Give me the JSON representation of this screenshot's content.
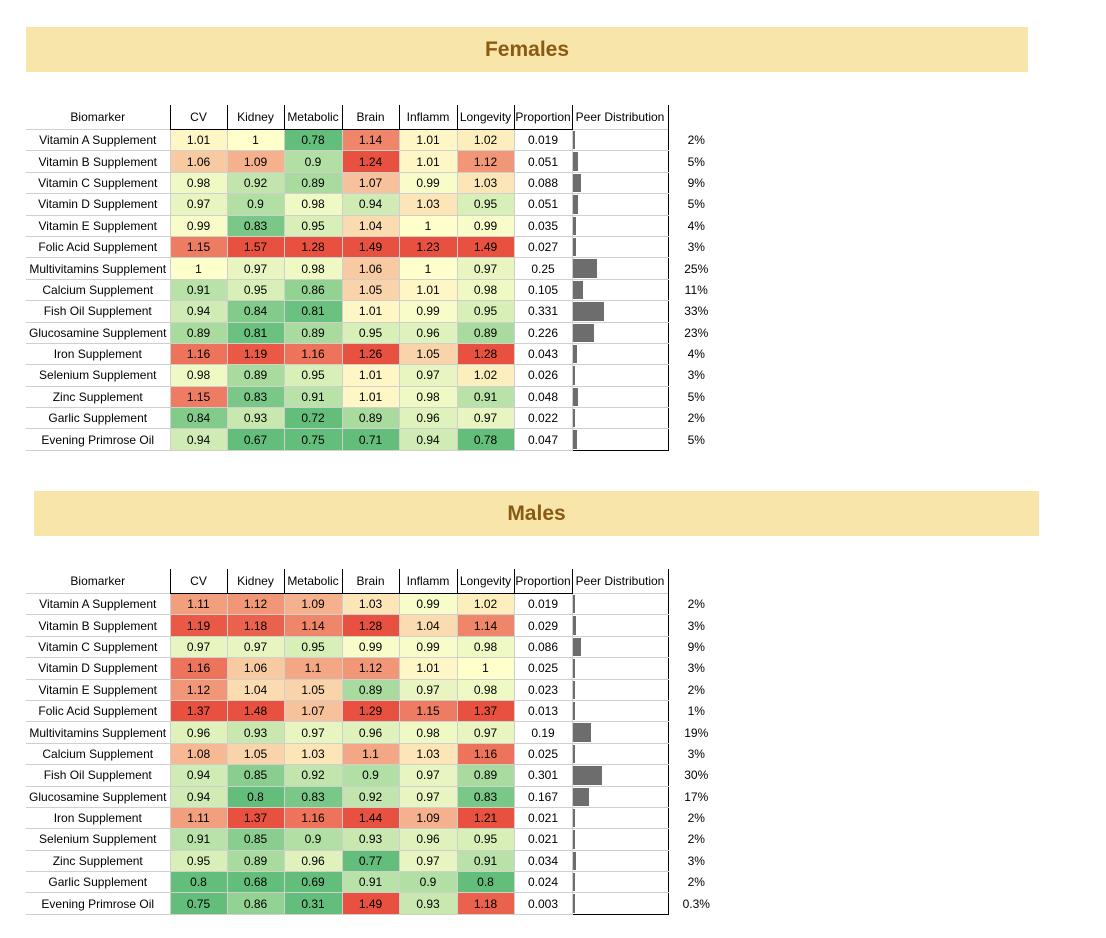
{
  "columns": [
    "Biomarker",
    "CV",
    "Kidney",
    "Metabolic",
    "Brain",
    "Inflamm",
    "Longevity",
    "Proportion",
    "Peer Distribution"
  ],
  "colors": {
    "banner": "#f7e5aa",
    "banner_text": "#8a5a14",
    "bar": "#6d6d6d",
    "low": "#63be7b",
    "mid": "#ffffcc",
    "high": "#e8503f"
  },
  "sections": [
    {
      "title": "Females",
      "chart_data": {
        "type": "table",
        "rows": [
          {
            "name": "Vitamin A Supplement",
            "values": [
              "1.01",
              "1",
              "0.78",
              "1.14",
              "1.01",
              "1.02"
            ],
            "proportion": "0.019",
            "pct": "2%",
            "frac": 0.019
          },
          {
            "name": "Vitamin B Supplement",
            "values": [
              "1.06",
              "1.09",
              "0.9",
              "1.24",
              "1.01",
              "1.12"
            ],
            "proportion": "0.051",
            "pct": "5%",
            "frac": 0.051
          },
          {
            "name": "Vitamin C Supplement",
            "values": [
              "0.98",
              "0.92",
              "0.89",
              "1.07",
              "0.99",
              "1.03"
            ],
            "proportion": "0.088",
            "pct": "9%",
            "frac": 0.088
          },
          {
            "name": "Vitamin D Supplement",
            "values": [
              "0.97",
              "0.9",
              "0.98",
              "0.94",
              "1.03",
              "0.95"
            ],
            "proportion": "0.051",
            "pct": "5%",
            "frac": 0.051
          },
          {
            "name": "Vitamin E Supplement",
            "values": [
              "0.99",
              "0.83",
              "0.95",
              "1.04",
              "1",
              "0.99"
            ],
            "proportion": "0.035",
            "pct": "4%",
            "frac": 0.035
          },
          {
            "name": "Folic Acid Supplement",
            "values": [
              "1.15",
              "1.57",
              "1.28",
              "1.49",
              "1.23",
              "1.49"
            ],
            "proportion": "0.027",
            "pct": "3%",
            "frac": 0.027
          },
          {
            "name": "Multivitamins Supplement",
            "values": [
              "1",
              "0.97",
              "0.98",
              "1.06",
              "1",
              "0.97"
            ],
            "proportion": "0.25",
            "pct": "25%",
            "frac": 0.25
          },
          {
            "name": "Calcium Supplement",
            "values": [
              "0.91",
              "0.95",
              "0.86",
              "1.05",
              "1.01",
              "0.98"
            ],
            "proportion": "0.105",
            "pct": "11%",
            "frac": 0.105
          },
          {
            "name": "Fish Oil Supplement",
            "values": [
              "0.94",
              "0.84",
              "0.81",
              "1.01",
              "0.99",
              "0.95"
            ],
            "proportion": "0.331",
            "pct": "33%",
            "frac": 0.331
          },
          {
            "name": "Glucosamine Supplement",
            "values": [
              "0.89",
              "0.81",
              "0.89",
              "0.95",
              "0.96",
              "0.89"
            ],
            "proportion": "0.226",
            "pct": "23%",
            "frac": 0.226
          },
          {
            "name": "Iron Supplement",
            "values": [
              "1.16",
              "1.19",
              "1.16",
              "1.26",
              "1.05",
              "1.28"
            ],
            "proportion": "0.043",
            "pct": "4%",
            "frac": 0.043
          },
          {
            "name": "Selenium Supplement",
            "values": [
              "0.98",
              "0.89",
              "0.95",
              "1.01",
              "0.97",
              "1.02"
            ],
            "proportion": "0.026",
            "pct": "3%",
            "frac": 0.026
          },
          {
            "name": "Zinc Supplement",
            "values": [
              "1.15",
              "0.83",
              "0.91",
              "1.01",
              "0.98",
              "0.91"
            ],
            "proportion": "0.048",
            "pct": "5%",
            "frac": 0.048
          },
          {
            "name": "Garlic Supplement",
            "values": [
              "0.84",
              "0.93",
              "0.72",
              "0.89",
              "0.96",
              "0.97"
            ],
            "proportion": "0.022",
            "pct": "2%",
            "frac": 0.022
          },
          {
            "name": "Evening Primrose Oil",
            "values": [
              "0.94",
              "0.67",
              "0.75",
              "0.71",
              "0.94",
              "0.78"
            ],
            "proportion": "0.047",
            "pct": "5%",
            "frac": 0.047
          }
        ]
      }
    },
    {
      "title": "Males",
      "chart_data": {
        "type": "table",
        "rows": [
          {
            "name": "Vitamin A Supplement",
            "values": [
              "1.11",
              "1.12",
              "1.09",
              "1.03",
              "0.99",
              "1.02"
            ],
            "proportion": "0.019",
            "pct": "2%",
            "frac": 0.019
          },
          {
            "name": "Vitamin B Supplement",
            "values": [
              "1.19",
              "1.18",
              "1.14",
              "1.28",
              "1.04",
              "1.14"
            ],
            "proportion": "0.029",
            "pct": "3%",
            "frac": 0.029
          },
          {
            "name": "Vitamin C Supplement",
            "values": [
              "0.97",
              "0.97",
              "0.95",
              "0.99",
              "0.99",
              "0.98"
            ],
            "proportion": "0.086",
            "pct": "9%",
            "frac": 0.086
          },
          {
            "name": "Vitamin D Supplement",
            "values": [
              "1.16",
              "1.06",
              "1.1",
              "1.12",
              "1.01",
              "1"
            ],
            "proportion": "0.025",
            "pct": "3%",
            "frac": 0.025
          },
          {
            "name": "Vitamin E Supplement",
            "values": [
              "1.12",
              "1.04",
              "1.05",
              "0.89",
              "0.97",
              "0.98"
            ],
            "proportion": "0.023",
            "pct": "2%",
            "frac": 0.023
          },
          {
            "name": "Folic Acid Supplement",
            "values": [
              "1.37",
              "1.48",
              "1.07",
              "1.29",
              "1.15",
              "1.37"
            ],
            "proportion": "0.013",
            "pct": "1%",
            "frac": 0.013
          },
          {
            "name": "Multivitamins Supplement",
            "values": [
              "0.96",
              "0.93",
              "0.97",
              "0.96",
              "0.98",
              "0.97"
            ],
            "proportion": "0.19",
            "pct": "19%",
            "frac": 0.19
          },
          {
            "name": "Calcium Supplement",
            "values": [
              "1.08",
              "1.05",
              "1.03",
              "1.1",
              "1.03",
              "1.16"
            ],
            "proportion": "0.025",
            "pct": "3%",
            "frac": 0.025
          },
          {
            "name": "Fish Oil Supplement",
            "values": [
              "0.94",
              "0.85",
              "0.92",
              "0.9",
              "0.97",
              "0.89"
            ],
            "proportion": "0.301",
            "pct": "30%",
            "frac": 0.301
          },
          {
            "name": "Glucosamine Supplement",
            "values": [
              "0.94",
              "0.8",
              "0.83",
              "0.92",
              "0.97",
              "0.83"
            ],
            "proportion": "0.167",
            "pct": "17%",
            "frac": 0.167
          },
          {
            "name": "Iron Supplement",
            "values": [
              "1.11",
              "1.37",
              "1.16",
              "1.44",
              "1.09",
              "1.21"
            ],
            "proportion": "0.021",
            "pct": "2%",
            "frac": 0.021
          },
          {
            "name": "Selenium Supplement",
            "values": [
              "0.91",
              "0.85",
              "0.9",
              "0.93",
              "0.96",
              "0.95"
            ],
            "proportion": "0.021",
            "pct": "2%",
            "frac": 0.021
          },
          {
            "name": "Zinc Supplement",
            "values": [
              "0.95",
              "0.89",
              "0.96",
              "0.77",
              "0.97",
              "0.91"
            ],
            "proportion": "0.034",
            "pct": "3%",
            "frac": 0.034
          },
          {
            "name": "Garlic Supplement",
            "values": [
              "0.8",
              "0.68",
              "0.69",
              "0.91",
              "0.9",
              "0.8"
            ],
            "proportion": "0.024",
            "pct": "2%",
            "frac": 0.024
          },
          {
            "name": "Evening Primrose Oil",
            "values": [
              "0.75",
              "0.86",
              "0.31",
              "1.49",
              "0.93",
              "1.18"
            ],
            "proportion": "0.003",
            "pct": "0.3%",
            "frac": 0.003
          }
        ]
      }
    }
  ]
}
